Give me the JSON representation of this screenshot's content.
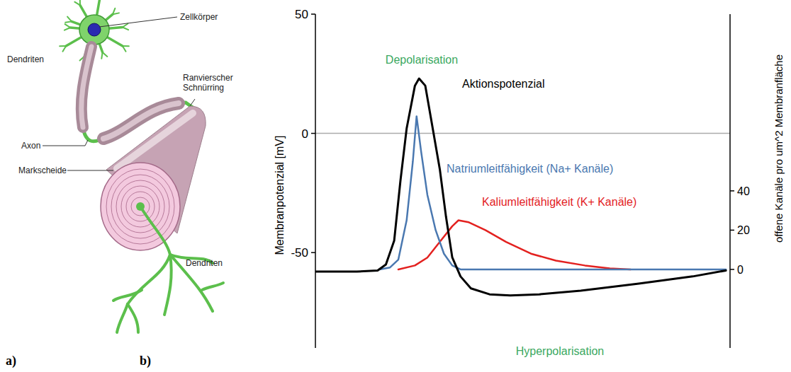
{
  "panel_letters": [
    "a)",
    "b)"
  ],
  "diagram": {
    "labels": [
      "Zellkörper",
      "Dendriten",
      "Ranvierscher Schnürring",
      "Axon",
      "Markscheide",
      "Dendriten"
    ]
  },
  "chart_data": {
    "type": "line",
    "y_label": "Membranpotenzial [mV]",
    "y2_label": "offene Kanäle pro um^2 Membranfläche",
    "xlim": [
      0,
      100
    ],
    "ylim": [
      -90,
      50
    ],
    "yticks": [
      -50,
      0,
      50
    ],
    "y2lim": [
      -40,
      130
    ],
    "y2ticks": [
      0,
      20,
      40
    ],
    "tick_labels": "y",
    "grid": false,
    "hlines": [
      0
    ],
    "series": [
      {
        "name": "Aktionspotenzial",
        "color": "#000000",
        "axis": "y",
        "x": [
          0,
          10,
          15,
          17,
          19,
          20.5,
          22,
          24,
          25,
          26.5,
          28,
          30,
          31.5,
          33,
          35,
          37.5,
          42,
          47,
          54,
          64,
          78,
          91,
          99
        ],
        "values": [
          -58,
          -58,
          -57.5,
          -55,
          -45,
          -20,
          2,
          20,
          23,
          20,
          5,
          -15,
          -35,
          -52,
          -60,
          -65,
          -67.5,
          -68,
          -67.5,
          -66,
          -63,
          -60,
          -57.5
        ]
      },
      {
        "name": "Natriumleitfähigkeit (Na+ Kanäle)",
        "color": "#4a78b0",
        "axis": "y2",
        "x": [
          15.5,
          18,
          20,
          22,
          23.5,
          24.4,
          25.5,
          27,
          29,
          31,
          33,
          35,
          99
        ],
        "values": [
          0,
          1,
          5,
          25,
          55,
          78,
          60,
          38,
          20,
          8,
          2,
          0,
          0
        ]
      },
      {
        "name": "Kaliumleitfähigkeit (K+ Kanäle)",
        "color": "#e3211f",
        "axis": "y2",
        "x": [
          20,
          24,
          27,
          30,
          33,
          34.5,
          37,
          41,
          46,
          52,
          58,
          65,
          71,
          76
        ],
        "values": [
          0,
          2,
          6,
          14,
          22,
          25,
          24,
          20,
          14,
          8,
          4.5,
          2,
          0.5,
          0
        ]
      }
    ],
    "annotations": [
      {
        "text": "Depolarisation",
        "color": "#3aa860"
      },
      {
        "text": "Hyperpolarisation",
        "color": "#3aa860"
      }
    ]
  }
}
